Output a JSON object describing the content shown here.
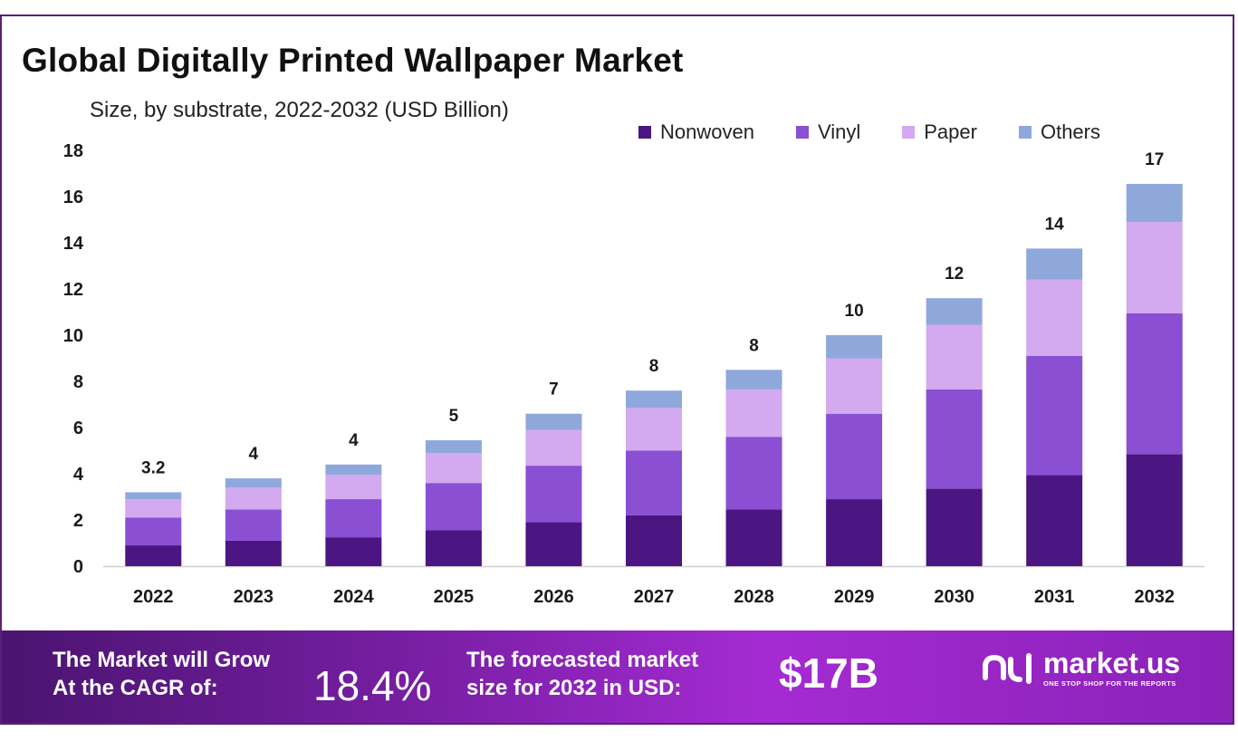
{
  "chart_data": {
    "type": "bar",
    "stacked": true,
    "title": "Global Digitally Printed Wallpaper Market",
    "subtitle": "Size, by substrate, 2022-2032 (USD Billion)",
    "categories": [
      "2022",
      "2023",
      "2024",
      "2025",
      "2026",
      "2027",
      "2028",
      "2029",
      "2030",
      "2031",
      "2032"
    ],
    "series": [
      {
        "name": "Nonwoven",
        "color": "#4b1582",
        "values": [
          0.9,
          1.1,
          1.25,
          1.55,
          1.9,
          2.2,
          2.45,
          2.9,
          3.35,
          3.95,
          4.85
        ]
      },
      {
        "name": "Vinyl",
        "color": "#8a4fd2",
        "values": [
          1.2,
          1.35,
          1.65,
          2.05,
          2.45,
          2.8,
          3.15,
          3.7,
          4.3,
          5.15,
          6.1
        ]
      },
      {
        "name": "Paper",
        "color": "#d3a9ef",
        "values": [
          0.8,
          0.95,
          1.05,
          1.3,
          1.55,
          1.85,
          2.05,
          2.4,
          2.8,
          3.3,
          3.95
        ]
      },
      {
        "name": "Others",
        "color": "#8fa8dc",
        "values": [
          0.3,
          0.4,
          0.45,
          0.55,
          0.7,
          0.75,
          0.85,
          1.0,
          1.15,
          1.35,
          1.65
        ]
      }
    ],
    "totals": [
      "3.2",
      "4",
      "4",
      "5",
      "7",
      "8",
      "8",
      "10",
      "12",
      "14",
      "17"
    ],
    "yticks": [
      "0",
      "2",
      "4",
      "6",
      "8",
      "10",
      "12",
      "14",
      "16",
      "18"
    ],
    "ylim": [
      0,
      18
    ],
    "grid": false,
    "legend_position": "top-right"
  },
  "banner": {
    "cagr_label_line1": "The Market will Grow",
    "cagr_label_line2": "At the CAGR of:",
    "cagr_value": "18.4%",
    "forecast_label_line1": "The forecasted market",
    "forecast_label_line2": "size for 2032 in USD:",
    "forecast_value": "$17B"
  },
  "logo": {
    "name": "market.us",
    "tagline": "ONE STOP SHOP FOR THE REPORTS",
    "icon": "market-us-logo-icon"
  }
}
